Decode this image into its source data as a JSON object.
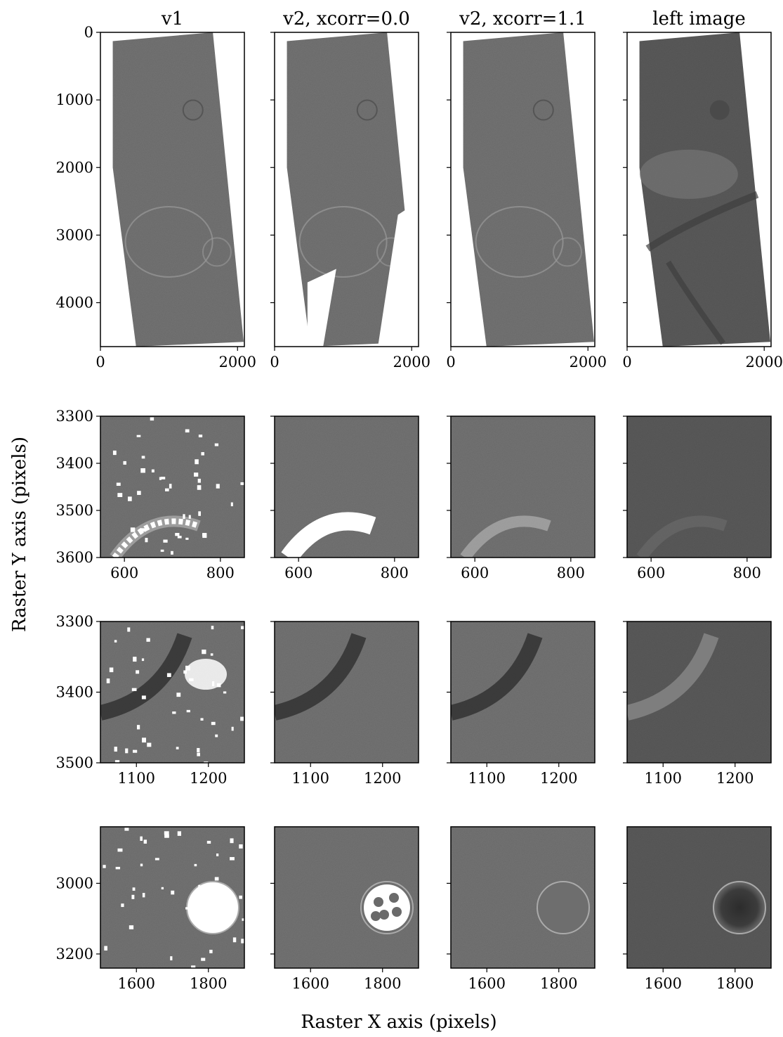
{
  "chart_data": {
    "type": "image-grid",
    "xlabel": "Raster X axis (pixels)",
    "ylabel": "Raster Y axis (pixels)",
    "columns": [
      "v1",
      "v2, xcorr=0.0",
      "v2, xcorr=1.1",
      "left image"
    ],
    "rows": [
      {
        "xlim": [
          0,
          2100
        ],
        "ylim": [
          4650,
          0
        ],
        "xticks": [
          0,
          2000
        ],
        "yticks": [
          0,
          1000,
          2000,
          3000,
          4000
        ],
        "content": "full hillshade overview"
      },
      {
        "xlim": [
          550,
          850
        ],
        "ylim": [
          3600,
          3300
        ],
        "xticks": [
          600,
          800
        ],
        "yticks": [
          3300,
          3400,
          3500,
          3600
        ],
        "content": "zoom on crater rim"
      },
      {
        "xlim": [
          1050,
          1250
        ],
        "ylim": [
          3500,
          3300
        ],
        "xticks": [
          1100,
          1200
        ],
        "yticks": [
          3300,
          3400,
          3500
        ],
        "content": "zoom on ridge"
      },
      {
        "xlim": [
          1500,
          1900
        ],
        "ylim": [
          3240,
          2840
        ],
        "xticks": [
          1600,
          1800
        ],
        "yticks": [
          3000,
          3200
        ],
        "content": "zoom on small crater"
      }
    ],
    "colors": {
      "hillshade": "#737373",
      "image": "#5a5a5a",
      "nodata": "#ffffff",
      "frame": "#000000"
    }
  }
}
